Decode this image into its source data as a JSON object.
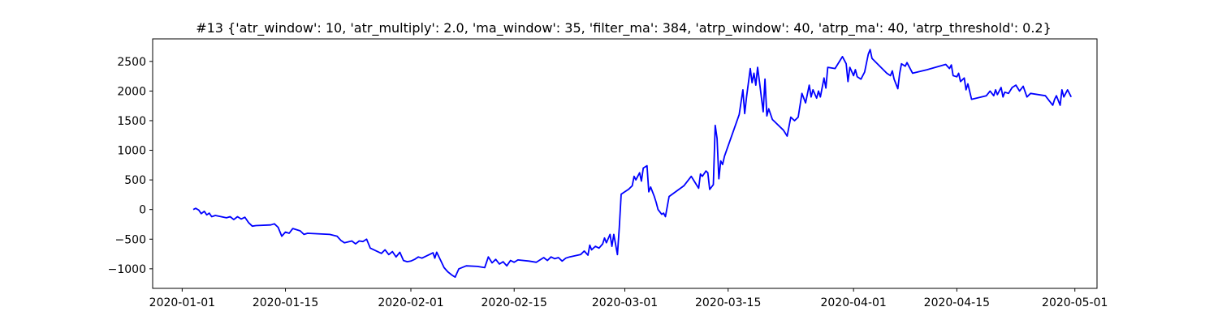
{
  "chart_data": {
    "type": "line",
    "title": "#13 {'atr_window': 10, 'atr_multiply': 2.0, 'ma_window': 35, 'filter_ma': 384, 'atrp_window': 40, 'atrp_ma': 40, 'atrp_threshold': 0.2}",
    "xlabel": "",
    "ylabel": "",
    "x_axis_type": "date",
    "xlim": [
      "2019-12-28T00:00",
      "2020-05-04T00:00"
    ],
    "ylim": [
      -1330,
      2880
    ],
    "x_ticks": [
      "2020-01-01",
      "2020-01-15",
      "2020-02-01",
      "2020-02-15",
      "2020-03-01",
      "2020-03-15",
      "2020-04-01",
      "2020-04-15",
      "2020-05-01"
    ],
    "y_ticks": [
      -1000,
      -500,
      0,
      500,
      1000,
      1500,
      2000,
      2500
    ],
    "grid": false,
    "legend": "none",
    "series": [
      {
        "name": "",
        "color": "#0000ff",
        "points": [
          [
            "2020-01-02T12:00",
            0
          ],
          [
            "2020-01-02T20:00",
            20
          ],
          [
            "2020-01-03T06:00",
            -10
          ],
          [
            "2020-01-03T14:00",
            -70
          ],
          [
            "2020-01-04T00:00",
            -30
          ],
          [
            "2020-01-04T08:00",
            -90
          ],
          [
            "2020-01-04T16:00",
            -60
          ],
          [
            "2020-01-05T00:00",
            -120
          ],
          [
            "2020-01-05T12:00",
            -100
          ],
          [
            "2020-01-07T00:00",
            -140
          ],
          [
            "2020-01-07T12:00",
            -120
          ],
          [
            "2020-01-08T00:00",
            -170
          ],
          [
            "2020-01-08T12:00",
            -120
          ],
          [
            "2020-01-09T00:00",
            -160
          ],
          [
            "2020-01-09T12:00",
            -130
          ],
          [
            "2020-01-10T00:00",
            -220
          ],
          [
            "2020-01-10T12:00",
            -280
          ],
          [
            "2020-01-11T00:00",
            -270
          ],
          [
            "2020-01-13T00:00",
            -260
          ],
          [
            "2020-01-13T12:00",
            -240
          ],
          [
            "2020-01-14T00:00",
            -300
          ],
          [
            "2020-01-14T12:00",
            -450
          ],
          [
            "2020-01-15T00:00",
            -380
          ],
          [
            "2020-01-15T12:00",
            -400
          ],
          [
            "2020-01-16T00:00",
            -320
          ],
          [
            "2020-01-17T00:00",
            -360
          ],
          [
            "2020-01-17T12:00",
            -420
          ],
          [
            "2020-01-18T00:00",
            -400
          ],
          [
            "2020-01-21T00:00",
            -420
          ],
          [
            "2020-01-22T00:00",
            -450
          ],
          [
            "2020-01-22T12:00",
            -520
          ],
          [
            "2020-01-23T00:00",
            -560
          ],
          [
            "2020-01-24T00:00",
            -530
          ],
          [
            "2020-01-24T12:00",
            -580
          ],
          [
            "2020-01-25T00:00",
            -530
          ],
          [
            "2020-01-25T12:00",
            -540
          ],
          [
            "2020-01-26T00:00",
            -500
          ],
          [
            "2020-01-26T12:00",
            -650
          ],
          [
            "2020-01-28T00:00",
            -740
          ],
          [
            "2020-01-28T12:00",
            -680
          ],
          [
            "2020-01-29T00:00",
            -760
          ],
          [
            "2020-01-29T12:00",
            -710
          ],
          [
            "2020-01-30T00:00",
            -800
          ],
          [
            "2020-01-30T12:00",
            -720
          ],
          [
            "2020-01-31T00:00",
            -860
          ],
          [
            "2020-01-31T12:00",
            -880
          ],
          [
            "2020-02-01T00:00",
            -870
          ],
          [
            "2020-02-01T12:00",
            -840
          ],
          [
            "2020-02-02T00:00",
            -800
          ],
          [
            "2020-02-02T12:00",
            -820
          ],
          [
            "2020-02-03T12:00",
            -760
          ],
          [
            "2020-02-04T00:00",
            -730
          ],
          [
            "2020-02-04T06:00",
            -820
          ],
          [
            "2020-02-04T12:00",
            -720
          ],
          [
            "2020-02-05T00:00",
            -850
          ],
          [
            "2020-02-05T12:00",
            -980
          ],
          [
            "2020-02-06T00:00",
            -1050
          ],
          [
            "2020-02-06T12:00",
            -1100
          ],
          [
            "2020-02-07T00:00",
            -1140
          ],
          [
            "2020-02-07T12:00",
            -1000
          ],
          [
            "2020-02-08T12:00",
            -950
          ],
          [
            "2020-02-10T00:00",
            -960
          ],
          [
            "2020-02-11T00:00",
            -980
          ],
          [
            "2020-02-11T12:00",
            -800
          ],
          [
            "2020-02-12T00:00",
            -900
          ],
          [
            "2020-02-12T12:00",
            -840
          ],
          [
            "2020-02-13T00:00",
            -920
          ],
          [
            "2020-02-13T12:00",
            -880
          ],
          [
            "2020-02-14T00:00",
            -950
          ],
          [
            "2020-02-14T12:00",
            -860
          ],
          [
            "2020-02-15T00:00",
            -890
          ],
          [
            "2020-02-15T12:00",
            -850
          ],
          [
            "2020-02-17T00:00",
            -870
          ],
          [
            "2020-02-18T00:00",
            -890
          ],
          [
            "2020-02-19T00:00",
            -810
          ],
          [
            "2020-02-19T12:00",
            -860
          ],
          [
            "2020-02-20T00:00",
            -800
          ],
          [
            "2020-02-20T12:00",
            -830
          ],
          [
            "2020-02-21T00:00",
            -810
          ],
          [
            "2020-02-21T12:00",
            -870
          ],
          [
            "2020-02-22T00:00",
            -820
          ],
          [
            "2020-02-22T12:00",
            -800
          ],
          [
            "2020-02-24T00:00",
            -760
          ],
          [
            "2020-02-24T12:00",
            -700
          ],
          [
            "2020-02-25T00:00",
            -770
          ],
          [
            "2020-02-25T06:00",
            -600
          ],
          [
            "2020-02-25T12:00",
            -680
          ],
          [
            "2020-02-26T00:00",
            -620
          ],
          [
            "2020-02-26T12:00",
            -650
          ],
          [
            "2020-02-27T00:00",
            -580
          ],
          [
            "2020-02-27T06:00",
            -480
          ],
          [
            "2020-02-27T12:00",
            -560
          ],
          [
            "2020-02-28T00:00",
            -420
          ],
          [
            "2020-02-28T06:00",
            -620
          ],
          [
            "2020-02-28T12:00",
            -420
          ],
          [
            "2020-02-29T00:00",
            -760
          ],
          [
            "2020-02-29T06:00",
            -300
          ],
          [
            "2020-02-29T12:00",
            260
          ],
          [
            "2020-03-01T12:00",
            340
          ],
          [
            "2020-03-02T00:00",
            400
          ],
          [
            "2020-03-02T06:00",
            560
          ],
          [
            "2020-03-02T12:00",
            500
          ],
          [
            "2020-03-03T00:00",
            620
          ],
          [
            "2020-03-03T06:00",
            480
          ],
          [
            "2020-03-03T12:00",
            700
          ],
          [
            "2020-03-04T00:00",
            740
          ],
          [
            "2020-03-04T06:00",
            300
          ],
          [
            "2020-03-04T12:00",
            380
          ],
          [
            "2020-03-05T00:00",
            220
          ],
          [
            "2020-03-05T06:00",
            120
          ],
          [
            "2020-03-05T12:00",
            0
          ],
          [
            "2020-03-06T00:00",
            -80
          ],
          [
            "2020-03-06T06:00",
            -60
          ],
          [
            "2020-03-06T12:00",
            -120
          ],
          [
            "2020-03-07T00:00",
            220
          ],
          [
            "2020-03-09T00:00",
            400
          ],
          [
            "2020-03-10T00:00",
            560
          ],
          [
            "2020-03-10T12:00",
            460
          ],
          [
            "2020-03-11T00:00",
            360
          ],
          [
            "2020-03-11T06:00",
            600
          ],
          [
            "2020-03-11T12:00",
            560
          ],
          [
            "2020-03-12T00:00",
            650
          ],
          [
            "2020-03-12T06:00",
            620
          ],
          [
            "2020-03-12T12:00",
            340
          ],
          [
            "2020-03-13T00:00",
            420
          ],
          [
            "2020-03-13T06:00",
            1420
          ],
          [
            "2020-03-13T12:00",
            1200
          ],
          [
            "2020-03-13T18:00",
            520
          ],
          [
            "2020-03-14T00:00",
            820
          ],
          [
            "2020-03-14T06:00",
            760
          ],
          [
            "2020-03-14T12:00",
            900
          ],
          [
            "2020-03-16T12:00",
            1600
          ],
          [
            "2020-03-17T00:00",
            2020
          ],
          [
            "2020-03-17T06:00",
            1620
          ],
          [
            "2020-03-17T12:00",
            1900
          ],
          [
            "2020-03-18T00:00",
            2380
          ],
          [
            "2020-03-18T06:00",
            2140
          ],
          [
            "2020-03-18T12:00",
            2300
          ],
          [
            "2020-03-18T18:00",
            2100
          ],
          [
            "2020-03-19T00:00",
            2400
          ],
          [
            "2020-03-19T06:00",
            2160
          ],
          [
            "2020-03-19T12:00",
            1900
          ],
          [
            "2020-03-19T18:00",
            1650
          ],
          [
            "2020-03-20T00:00",
            2200
          ],
          [
            "2020-03-20T06:00",
            1580
          ],
          [
            "2020-03-20T12:00",
            1700
          ],
          [
            "2020-03-21T00:00",
            1520
          ],
          [
            "2020-03-22T12:00",
            1340
          ],
          [
            "2020-03-23T00:00",
            1240
          ],
          [
            "2020-03-23T12:00",
            1560
          ],
          [
            "2020-03-24T00:00",
            1500
          ],
          [
            "2020-03-24T12:00",
            1560
          ],
          [
            "2020-03-25T00:00",
            1960
          ],
          [
            "2020-03-25T12:00",
            1800
          ],
          [
            "2020-03-26T00:00",
            2100
          ],
          [
            "2020-03-26T06:00",
            1900
          ],
          [
            "2020-03-26T12:00",
            2020
          ],
          [
            "2020-03-27T00:00",
            1880
          ],
          [
            "2020-03-27T06:00",
            2000
          ],
          [
            "2020-03-27T12:00",
            1900
          ],
          [
            "2020-03-28T00:00",
            2220
          ],
          [
            "2020-03-28T06:00",
            2050
          ],
          [
            "2020-03-28T12:00",
            2400
          ],
          [
            "2020-03-29T12:00",
            2380
          ],
          [
            "2020-03-30T12:00",
            2580
          ],
          [
            "2020-03-31T00:00",
            2460
          ],
          [
            "2020-03-31T06:00",
            2160
          ],
          [
            "2020-03-31T12:00",
            2400
          ],
          [
            "2020-04-01T00:00",
            2260
          ],
          [
            "2020-04-01T06:00",
            2360
          ],
          [
            "2020-04-01T12:00",
            2240
          ],
          [
            "2020-04-02T00:00",
            2200
          ],
          [
            "2020-04-02T12:00",
            2320
          ],
          [
            "2020-04-03T00:00",
            2620
          ],
          [
            "2020-04-03T06:00",
            2700
          ],
          [
            "2020-04-03T12:00",
            2550
          ],
          [
            "2020-04-05T12:00",
            2300
          ],
          [
            "2020-04-06T00:00",
            2260
          ],
          [
            "2020-04-06T06:00",
            2340
          ],
          [
            "2020-04-06T12:00",
            2200
          ],
          [
            "2020-04-07T00:00",
            2040
          ],
          [
            "2020-04-07T06:00",
            2300
          ],
          [
            "2020-04-07T12:00",
            2460
          ],
          [
            "2020-04-08T00:00",
            2420
          ],
          [
            "2020-04-08T06:00",
            2480
          ],
          [
            "2020-04-08T12:00",
            2420
          ],
          [
            "2020-04-09T00:00",
            2300
          ],
          [
            "2020-04-11T00:00",
            2360
          ],
          [
            "2020-04-13T12:00",
            2450
          ],
          [
            "2020-04-14T00:00",
            2380
          ],
          [
            "2020-04-14T06:00",
            2440
          ],
          [
            "2020-04-14T12:00",
            2260
          ],
          [
            "2020-04-15T00:00",
            2240
          ],
          [
            "2020-04-15T06:00",
            2300
          ],
          [
            "2020-04-15T12:00",
            2160
          ],
          [
            "2020-04-16T00:00",
            2220
          ],
          [
            "2020-04-16T06:00",
            2020
          ],
          [
            "2020-04-16T12:00",
            2120
          ],
          [
            "2020-04-17T00:00",
            1860
          ],
          [
            "2020-04-19T00:00",
            1920
          ],
          [
            "2020-04-19T12:00",
            2000
          ],
          [
            "2020-04-20T00:00",
            1920
          ],
          [
            "2020-04-20T06:00",
            2020
          ],
          [
            "2020-04-20T12:00",
            1940
          ],
          [
            "2020-04-21T00:00",
            2060
          ],
          [
            "2020-04-21T06:00",
            1900
          ],
          [
            "2020-04-21T12:00",
            1980
          ],
          [
            "2020-04-22T00:00",
            1960
          ],
          [
            "2020-04-22T12:00",
            2060
          ],
          [
            "2020-04-23T00:00",
            2100
          ],
          [
            "2020-04-23T12:00",
            2000
          ],
          [
            "2020-04-24T00:00",
            2080
          ],
          [
            "2020-04-24T12:00",
            1900
          ],
          [
            "2020-04-25T00:00",
            1960
          ],
          [
            "2020-04-27T00:00",
            1920
          ],
          [
            "2020-04-27T12:00",
            1840
          ],
          [
            "2020-04-28T00:00",
            1760
          ],
          [
            "2020-04-28T06:00",
            1860
          ],
          [
            "2020-04-28T12:00",
            1920
          ],
          [
            "2020-04-29T00:00",
            1760
          ],
          [
            "2020-04-29T06:00",
            2020
          ],
          [
            "2020-04-29T12:00",
            1900
          ],
          [
            "2020-04-30T00:00",
            2020
          ],
          [
            "2020-04-30T12:00",
            1900
          ]
        ]
      }
    ]
  }
}
